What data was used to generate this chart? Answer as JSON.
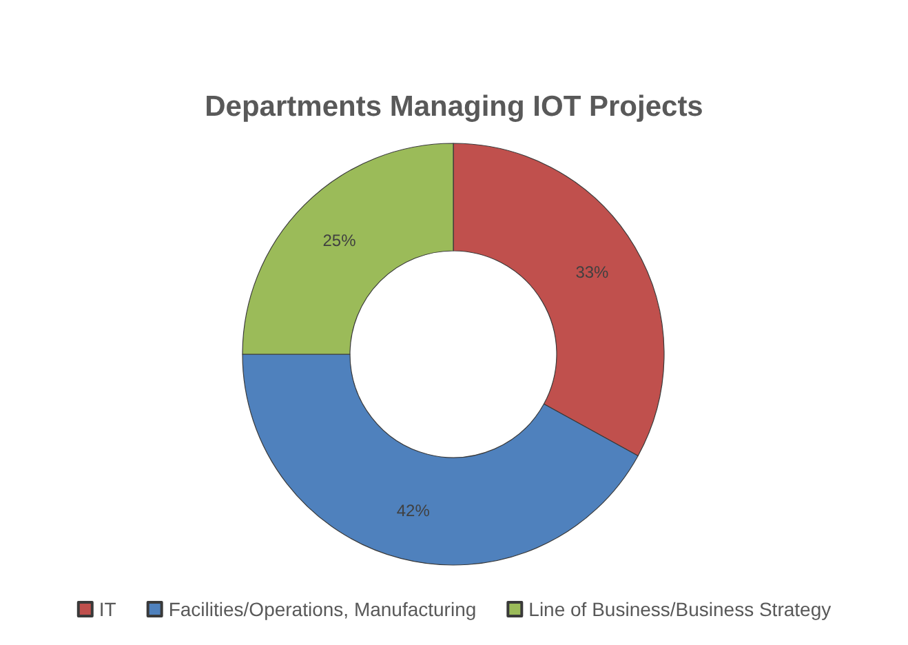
{
  "chart_data": {
    "type": "donut",
    "title": "Departments Managing IOT Projects",
    "categories": [
      "IT",
      "Facilities/Operations, Manufacturing",
      "Line of Business/Business Strategy"
    ],
    "values": [
      33,
      42,
      25
    ],
    "colors": [
      "#c0504d",
      "#4f81bd",
      "#9bbb59"
    ],
    "value_labels": [
      "33%",
      "42%",
      "25%"
    ],
    "legend": "bottom"
  }
}
